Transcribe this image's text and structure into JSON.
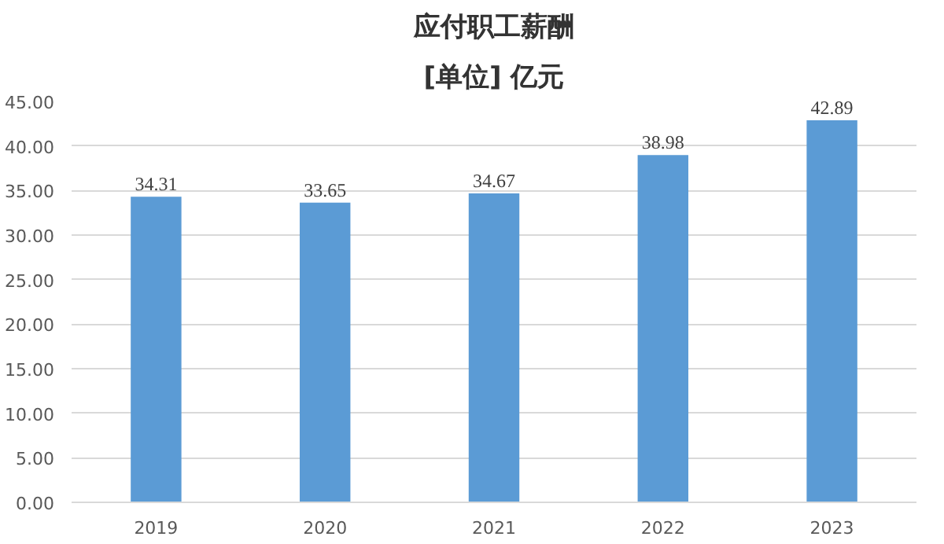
{
  "chart_data": {
    "type": "bar",
    "title": "应付职工薪酬",
    "subtitle": "[单位] 亿元",
    "categories": [
      "2019",
      "2020",
      "2021",
      "2022",
      "2023"
    ],
    "values": [
      34.31,
      33.65,
      34.67,
      38.98,
      42.89
    ],
    "color": "#5b9bd5",
    "data_labels": true,
    "grid": "y",
    "ylim": [
      0,
      45
    ],
    "yticks": [
      {
        "value": 0,
        "label": "0.00"
      },
      {
        "value": 5,
        "label": "5.00"
      },
      {
        "value": 10,
        "label": "10.00"
      },
      {
        "value": 15,
        "label": "15.00"
      },
      {
        "value": 20,
        "label": "20.00"
      },
      {
        "value": 25,
        "label": "25.00"
      },
      {
        "value": 30,
        "label": "30.00"
      },
      {
        "value": 35,
        "label": "35.00"
      },
      {
        "value": 40,
        "label": "40.00"
      },
      {
        "value": 45,
        "label": "45.00"
      }
    ]
  }
}
